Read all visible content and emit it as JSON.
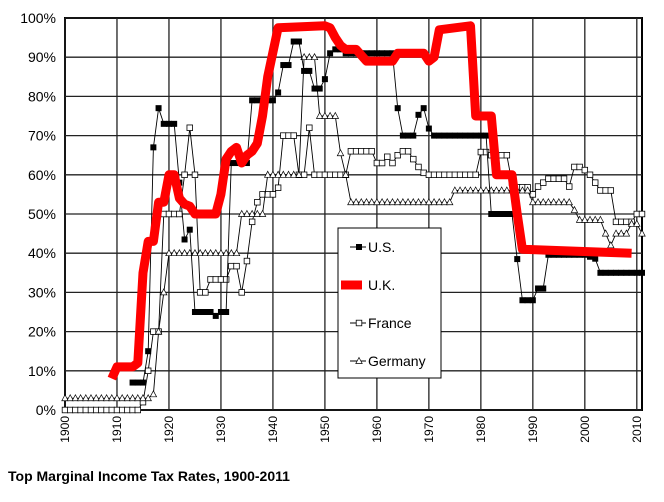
{
  "chart_data": {
    "type": "line",
    "title": "Top Marginal Income Tax Rates, 1900-2011",
    "xlabel": "",
    "ylabel": "",
    "xlim": [
      1900,
      2011
    ],
    "ylim": [
      0,
      100
    ],
    "x_ticks": [
      "1900",
      "1910",
      "1920",
      "1930",
      "1940",
      "1950",
      "1960",
      "1970",
      "1980",
      "1990",
      "2000",
      "2010"
    ],
    "y_ticks": [
      "0%",
      "10%",
      "20%",
      "30%",
      "40%",
      "50%",
      "60%",
      "70%",
      "80%",
      "90%",
      "100%"
    ],
    "grid": true,
    "legend_position": "center-right",
    "series": [
      {
        "name": "U.S.",
        "color": "#000000",
        "marker": "filled-square",
        "points": [
          [
            1913,
            7
          ],
          [
            1915,
            7
          ],
          [
            1916,
            15
          ],
          [
            1917,
            67
          ],
          [
            1918,
            77
          ],
          [
            1919,
            73
          ],
          [
            1921,
            73
          ],
          [
            1922,
            58
          ],
          [
            1923,
            43.5
          ],
          [
            1924,
            46
          ],
          [
            1925,
            25
          ],
          [
            1928,
            25
          ],
          [
            1929,
            24
          ],
          [
            1930,
            25
          ],
          [
            1931,
            25
          ],
          [
            1932,
            63
          ],
          [
            1935,
            63
          ],
          [
            1936,
            79
          ],
          [
            1940,
            79
          ],
          [
            1941,
            81
          ],
          [
            1942,
            88
          ],
          [
            1943,
            88
          ],
          [
            1944,
            94
          ],
          [
            1945,
            94
          ],
          [
            1946,
            86.5
          ],
          [
            1947,
            86.5
          ],
          [
            1948,
            82
          ],
          [
            1949,
            82
          ],
          [
            1950,
            84.4
          ],
          [
            1951,
            91
          ],
          [
            1952,
            92
          ],
          [
            1953,
            92
          ],
          [
            1954,
            91
          ],
          [
            1963,
            91
          ],
          [
            1964,
            77
          ],
          [
            1965,
            70
          ],
          [
            1967,
            70
          ],
          [
            1968,
            75.3
          ],
          [
            1969,
            77
          ],
          [
            1970,
            71.8
          ],
          [
            1971,
            70
          ],
          [
            1981,
            70
          ],
          [
            1982,
            50
          ],
          [
            1986,
            50
          ],
          [
            1987,
            38.5
          ],
          [
            1988,
            28
          ],
          [
            1990,
            28
          ],
          [
            1991,
            31
          ],
          [
            1992,
            31
          ],
          [
            1993,
            39.6
          ],
          [
            2000,
            39.6
          ],
          [
            2001,
            39.1
          ],
          [
            2002,
            38.6
          ],
          [
            2003,
            35
          ],
          [
            2011,
            35
          ]
        ]
      },
      {
        "name": "U.K.",
        "color": "#ff0000",
        "marker": "none",
        "points": [
          [
            1909,
            8
          ],
          [
            1910,
            11
          ],
          [
            1913,
            11
          ],
          [
            1914,
            12
          ],
          [
            1915,
            35
          ],
          [
            1916,
            43
          ],
          [
            1917,
            43
          ],
          [
            1918,
            53
          ],
          [
            1919,
            53
          ],
          [
            1920,
            60
          ],
          [
            1921,
            60
          ],
          [
            1922,
            54
          ],
          [
            1923,
            52.5
          ],
          [
            1924,
            52
          ],
          [
            1925,
            50
          ],
          [
            1929,
            50
          ],
          [
            1930,
            55
          ],
          [
            1931,
            64
          ],
          [
            1932,
            66
          ],
          [
            1933,
            67
          ],
          [
            1934,
            63
          ],
          [
            1935,
            65
          ],
          [
            1936,
            66
          ],
          [
            1937,
            68
          ],
          [
            1938,
            75
          ],
          [
            1939,
            85
          ],
          [
            1941,
            97.5
          ],
          [
            1950,
            98
          ],
          [
            1951,
            97.5
          ],
          [
            1952,
            95
          ],
          [
            1953,
            93
          ],
          [
            1954,
            92
          ],
          [
            1956,
            92
          ],
          [
            1958,
            89
          ],
          [
            1963,
            89
          ],
          [
            1964,
            91
          ],
          [
            1969,
            91
          ],
          [
            1970,
            89
          ],
          [
            1971,
            90
          ],
          [
            1972,
            97
          ],
          [
            1978,
            98
          ],
          [
            1979,
            75
          ],
          [
            1982,
            75
          ],
          [
            1983,
            60
          ],
          [
            1986,
            60
          ],
          [
            1987,
            50
          ],
          [
            1988,
            41
          ],
          [
            2009,
            40
          ]
        ]
      },
      {
        "name": "France",
        "color": "#000000",
        "marker": "open-square",
        "points": [
          [
            1900,
            0
          ],
          [
            1914,
            0
          ],
          [
            1915,
            2
          ],
          [
            1916,
            10
          ],
          [
            1917,
            20
          ],
          [
            1918,
            20
          ],
          [
            1919,
            50
          ],
          [
            1922,
            50
          ],
          [
            1923,
            60
          ],
          [
            1924,
            72
          ],
          [
            1925,
            60
          ],
          [
            1926,
            30
          ],
          [
            1927,
            30
          ],
          [
            1928,
            33.3
          ],
          [
            1931,
            33.3
          ],
          [
            1932,
            36.7
          ],
          [
            1933,
            36.7
          ],
          [
            1934,
            30
          ],
          [
            1935,
            38
          ],
          [
            1936,
            48
          ],
          [
            1937,
            53
          ],
          [
            1938,
            55
          ],
          [
            1940,
            55
          ],
          [
            1941,
            56.7
          ],
          [
            1942,
            70
          ],
          [
            1944,
            70
          ],
          [
            1945,
            60
          ],
          [
            1946,
            60
          ],
          [
            1947,
            72
          ],
          [
            1948,
            60
          ],
          [
            1954,
            60
          ],
          [
            1955,
            66
          ],
          [
            1959,
            66
          ],
          [
            1960,
            63
          ],
          [
            1961,
            63
          ],
          [
            1962,
            64.6
          ],
          [
            1963,
            63
          ],
          [
            1964,
            65
          ],
          [
            1965,
            66
          ],
          [
            1966,
            66
          ],
          [
            1967,
            64
          ],
          [
            1968,
            62
          ],
          [
            1969,
            60.5
          ],
          [
            1970,
            60
          ],
          [
            1979,
            60
          ],
          [
            1980,
            65.8
          ],
          [
            1981,
            65.8
          ],
          [
            1982,
            65
          ],
          [
            1985,
            65
          ],
          [
            1986,
            58
          ],
          [
            1987,
            56.8
          ],
          [
            1989,
            56.8
          ],
          [
            1990,
            55
          ],
          [
            1991,
            57
          ],
          [
            1992,
            58
          ],
          [
            1993,
            59
          ],
          [
            1996,
            59
          ],
          [
            1997,
            57
          ],
          [
            1998,
            62
          ],
          [
            1999,
            62
          ],
          [
            2000,
            61.2
          ],
          [
            2001,
            60
          ],
          [
            2002,
            58
          ],
          [
            2003,
            56
          ],
          [
            2005,
            56
          ],
          [
            2006,
            48
          ],
          [
            2009,
            48
          ],
          [
            2010,
            50
          ],
          [
            2011,
            50
          ]
        ]
      },
      {
        "name": "Germany",
        "color": "#000000",
        "marker": "open-triangle",
        "points": [
          [
            1900,
            3
          ],
          [
            1916,
            3
          ],
          [
            1917,
            4
          ],
          [
            1918,
            20
          ],
          [
            1919,
            30
          ],
          [
            1920,
            40
          ],
          [
            1933,
            40
          ],
          [
            1934,
            50
          ],
          [
            1938,
            50
          ],
          [
            1939,
            60
          ],
          [
            1945,
            60
          ],
          [
            1946,
            90
          ],
          [
            1948,
            90
          ],
          [
            1949,
            75
          ],
          [
            1952,
            75
          ],
          [
            1953,
            65.5
          ],
          [
            1954,
            60
          ],
          [
            1955,
            53
          ],
          [
            1974,
            53
          ],
          [
            1975,
            56
          ],
          [
            1989,
            56
          ],
          [
            1990,
            53
          ],
          [
            1997,
            53
          ],
          [
            1998,
            51
          ],
          [
            1999,
            48.5
          ],
          [
            2000,
            48.5
          ],
          [
            2001,
            48.5
          ],
          [
            2002,
            48.5
          ],
          [
            2003,
            48.5
          ],
          [
            2004,
            45
          ],
          [
            2005,
            42
          ],
          [
            2006,
            45
          ],
          [
            2008,
            45
          ],
          [
            2009,
            47.5
          ],
          [
            2010,
            47.5
          ],
          [
            2011,
            45
          ]
        ]
      }
    ]
  }
}
